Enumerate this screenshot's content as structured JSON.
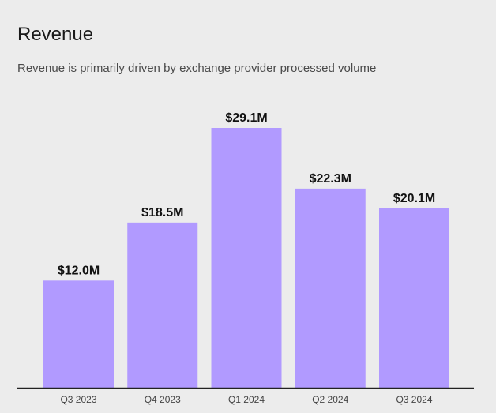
{
  "header": {
    "title": "Revenue",
    "subtitle": "Revenue is primarily driven by exchange provider processed volume"
  },
  "colors": {
    "background": "#ececec",
    "bar": "#b19aff",
    "axis": "#222222",
    "text": "#111111"
  },
  "chart_data": {
    "type": "bar",
    "title": "Revenue",
    "subtitle": "Revenue is primarily driven by exchange provider processed volume",
    "categories": [
      "Q3 2023",
      "Q4 2023",
      "Q1 2024",
      "Q2 2024",
      "Q3 2024"
    ],
    "values": [
      12.0,
      18.5,
      29.1,
      22.3,
      20.1
    ],
    "data_labels": [
      "$12.0M",
      "$18.5M",
      "$29.1M",
      "$22.3M",
      "$20.1M"
    ],
    "unit": "$M",
    "xlabel": "",
    "ylabel": "",
    "ylim": [
      0,
      30
    ],
    "grid": false,
    "legend": "none"
  }
}
